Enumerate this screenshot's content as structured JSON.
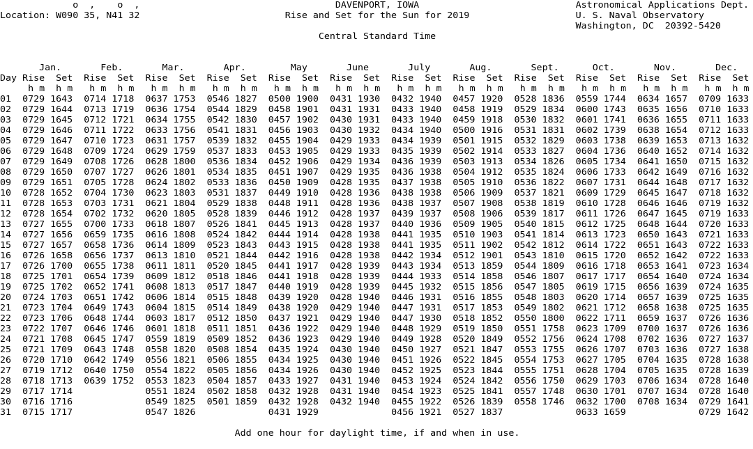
{
  "header": {
    "deg_marks": "o  ,    o  ,",
    "location": "Location: W090 35, N41 32",
    "place": "DAVENPORT, IOWA",
    "title": "Rise and Set for the Sun for 2019",
    "timezone": "Central Standard Time",
    "dept": "Astronomical Applications Dept.",
    "observatory": "U. S. Naval Observatory",
    "address": "Washington, DC  20392-5420"
  },
  "table": {
    "day_label": "Day",
    "rise_label": "Rise",
    "set_label": "Set",
    "hm_label": "h m",
    "months": [
      "Jan.",
      "Feb.",
      "Mar.",
      "Apr.",
      "May",
      "June",
      "July",
      "Aug.",
      "Sept.",
      "Oct.",
      "Nov.",
      "Dec."
    ],
    "rows": [
      [
        "01",
        "0729 1643",
        "0714 1718",
        "0637 1753",
        "0546 1827",
        "0500 1900",
        "0431 1930",
        "0432 1940",
        "0457 1920",
        "0528 1836",
        "0559 1744",
        "0634 1657",
        "0709 1633"
      ],
      [
        "02",
        "0729 1644",
        "0713 1719",
        "0636 1754",
        "0544 1829",
        "0458 1901",
        "0431 1931",
        "0433 1940",
        "0458 1919",
        "0529 1834",
        "0600 1743",
        "0635 1656",
        "0710 1633"
      ],
      [
        "03",
        "0729 1645",
        "0712 1721",
        "0634 1755",
        "0542 1830",
        "0457 1902",
        "0430 1931",
        "0433 1940",
        "0459 1918",
        "0530 1832",
        "0601 1741",
        "0636 1655",
        "0711 1633"
      ],
      [
        "04",
        "0729 1646",
        "0711 1722",
        "0633 1756",
        "0541 1831",
        "0456 1903",
        "0430 1932",
        "0434 1940",
        "0500 1916",
        "0531 1831",
        "0602 1739",
        "0638 1654",
        "0712 1633"
      ],
      [
        "05",
        "0729 1647",
        "0710 1723",
        "0631 1757",
        "0539 1832",
        "0455 1904",
        "0429 1933",
        "0434 1939",
        "0501 1915",
        "0532 1829",
        "0603 1738",
        "0639 1653",
        "0713 1632"
      ],
      [
        "06",
        "0729 1648",
        "0709 1724",
        "0629 1759",
        "0537 1833",
        "0453 1905",
        "0429 1933",
        "0435 1939",
        "0502 1914",
        "0533 1827",
        "0604 1736",
        "0640 1652",
        "0714 1632"
      ],
      [
        "07",
        "0729 1649",
        "0708 1726",
        "0628 1800",
        "0536 1834",
        "0452 1906",
        "0429 1934",
        "0436 1939",
        "0503 1913",
        "0534 1826",
        "0605 1734",
        "0641 1650",
        "0715 1632"
      ],
      [
        "08",
        "0729 1650",
        "0707 1727",
        "0626 1801",
        "0534 1835",
        "0451 1907",
        "0429 1935",
        "0436 1938",
        "0504 1912",
        "0535 1824",
        "0606 1733",
        "0642 1649",
        "0716 1632"
      ],
      [
        "09",
        "0729 1651",
        "0705 1728",
        "0624 1802",
        "0533 1836",
        "0450 1909",
        "0428 1935",
        "0437 1938",
        "0505 1910",
        "0536 1822",
        "0607 1731",
        "0644 1648",
        "0717 1632"
      ],
      [
        "10",
        "0728 1652",
        "0704 1730",
        "0623 1803",
        "0531 1837",
        "0449 1910",
        "0428 1936",
        "0438 1938",
        "0506 1909",
        "0537 1821",
        "0609 1729",
        "0645 1647",
        "0718 1632"
      ],
      [
        "11",
        "0728 1653",
        "0703 1731",
        "0621 1804",
        "0529 1838",
        "0448 1911",
        "0428 1936",
        "0438 1937",
        "0507 1908",
        "0538 1819",
        "0610 1728",
        "0646 1646",
        "0719 1632"
      ],
      [
        "12",
        "0728 1654",
        "0702 1732",
        "0620 1805",
        "0528 1839",
        "0446 1912",
        "0428 1937",
        "0439 1937",
        "0508 1906",
        "0539 1817",
        "0611 1726",
        "0647 1645",
        "0719 1633"
      ],
      [
        "13",
        "0727 1655",
        "0700 1733",
        "0618 1807",
        "0526 1841",
        "0445 1913",
        "0428 1937",
        "0440 1936",
        "0509 1905",
        "0540 1815",
        "0612 1725",
        "0648 1644",
        "0720 1633"
      ],
      [
        "14",
        "0727 1656",
        "0659 1735",
        "0616 1808",
        "0524 1842",
        "0444 1914",
        "0428 1938",
        "0441 1935",
        "0510 1903",
        "0541 1814",
        "0613 1723",
        "0650 1643",
        "0721 1633"
      ],
      [
        "15",
        "0727 1657",
        "0658 1736",
        "0614 1809",
        "0523 1843",
        "0443 1915",
        "0428 1938",
        "0441 1935",
        "0511 1902",
        "0542 1812",
        "0614 1722",
        "0651 1643",
        "0722 1633"
      ],
      [
        "16",
        "0726 1658",
        "0656 1737",
        "0613 1810",
        "0521 1844",
        "0442 1916",
        "0428 1938",
        "0442 1934",
        "0512 1901",
        "0543 1810",
        "0615 1720",
        "0652 1642",
        "0722 1633"
      ],
      [
        "17",
        "0726 1700",
        "0655 1738",
        "0611 1811",
        "0520 1845",
        "0441 1917",
        "0428 1939",
        "0443 1934",
        "0513 1859",
        "0544 1809",
        "0616 1718",
        "0653 1641",
        "0723 1634"
      ],
      [
        "18",
        "0725 1701",
        "0654 1739",
        "0609 1812",
        "0518 1846",
        "0441 1918",
        "0428 1939",
        "0444 1933",
        "0514 1858",
        "0546 1807",
        "0617 1717",
        "0654 1640",
        "0724 1634"
      ],
      [
        "19",
        "0725 1702",
        "0652 1741",
        "0608 1813",
        "0517 1847",
        "0440 1919",
        "0428 1939",
        "0445 1932",
        "0515 1856",
        "0547 1805",
        "0619 1715",
        "0656 1639",
        "0724 1635"
      ],
      [
        "20",
        "0724 1703",
        "0651 1742",
        "0606 1814",
        "0515 1848",
        "0439 1920",
        "0428 1940",
        "0446 1931",
        "0516 1855",
        "0548 1803",
        "0620 1714",
        "0657 1639",
        "0725 1635"
      ],
      [
        "21",
        "0723 1704",
        "0649 1743",
        "0604 1815",
        "0514 1849",
        "0438 1920",
        "0429 1940",
        "0447 1931",
        "0517 1853",
        "0549 1802",
        "0621 1712",
        "0658 1638",
        "0725 1635"
      ],
      [
        "22",
        "0723 1706",
        "0648 1744",
        "0603 1817",
        "0512 1850",
        "0437 1921",
        "0429 1940",
        "0447 1930",
        "0518 1852",
        "0550 1800",
        "0622 1711",
        "0659 1637",
        "0726 1636"
      ],
      [
        "23",
        "0722 1707",
        "0646 1746",
        "0601 1818",
        "0511 1851",
        "0436 1922",
        "0429 1940",
        "0448 1929",
        "0519 1850",
        "0551 1758",
        "0623 1709",
        "0700 1637",
        "0726 1636"
      ],
      [
        "24",
        "0721 1708",
        "0645 1747",
        "0559 1819",
        "0509 1852",
        "0436 1923",
        "0429 1940",
        "0449 1928",
        "0520 1849",
        "0552 1756",
        "0624 1708",
        "0702 1636",
        "0727 1637"
      ],
      [
        "25",
        "0721 1709",
        "0643 1748",
        "0558 1820",
        "0508 1854",
        "0435 1924",
        "0430 1940",
        "0450 1927",
        "0521 1847",
        "0553 1755",
        "0626 1707",
        "0703 1636",
        "0727 1638"
      ],
      [
        "26",
        "0720 1710",
        "0642 1749",
        "0556 1821",
        "0506 1855",
        "0434 1925",
        "0430 1940",
        "0451 1926",
        "0522 1845",
        "0554 1753",
        "0627 1705",
        "0704 1635",
        "0728 1638"
      ],
      [
        "27",
        "0719 1712",
        "0640 1750",
        "0554 1822",
        "0505 1856",
        "0434 1926",
        "0430 1940",
        "0452 1925",
        "0523 1844",
        "0555 1751",
        "0628 1704",
        "0705 1635",
        "0728 1639"
      ],
      [
        "28",
        "0718 1713",
        "0639 1752",
        "0553 1823",
        "0504 1857",
        "0433 1927",
        "0431 1940",
        "0453 1924",
        "0524 1842",
        "0556 1750",
        "0629 1703",
        "0706 1634",
        "0728 1640"
      ],
      [
        "29",
        "0717 1714",
        "",
        "0551 1824",
        "0502 1858",
        "0432 1928",
        "0431 1940",
        "0454 1923",
        "0525 1841",
        "0557 1748",
        "0630 1701",
        "0707 1634",
        "0728 1640"
      ],
      [
        "30",
        "0716 1716",
        "",
        "0549 1825",
        "0501 1859",
        "0432 1928",
        "0432 1940",
        "0455 1922",
        "0526 1839",
        "0558 1746",
        "0632 1700",
        "0708 1634",
        "0729 1641"
      ],
      [
        "31",
        "0715 1717",
        "",
        "0547 1826",
        "",
        "0431 1929",
        "",
        "0456 1921",
        "0527 1837",
        "",
        "0633 1659",
        "",
        "0729 1642"
      ]
    ]
  },
  "footer": {
    "note": "Add one hour for daylight time, if and when in use."
  }
}
